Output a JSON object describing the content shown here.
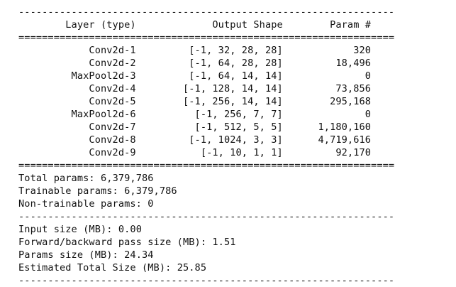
{
  "header": {
    "col_layer": "Layer (type)",
    "col_shape": "Output Shape",
    "col_params": "Param #"
  },
  "layers": [
    {
      "name": "Conv2d-1",
      "shape": "[-1, 32, 28, 28]",
      "params": "320"
    },
    {
      "name": "Conv2d-2",
      "shape": "[-1, 64, 28, 28]",
      "params": "18,496"
    },
    {
      "name": "MaxPool2d-3",
      "shape": "[-1, 64, 14, 14]",
      "params": "0"
    },
    {
      "name": "Conv2d-4",
      "shape": "[-1, 128, 14, 14]",
      "params": "73,856"
    },
    {
      "name": "Conv2d-5",
      "shape": "[-1, 256, 14, 14]",
      "params": "295,168"
    },
    {
      "name": "MaxPool2d-6",
      "shape": "[-1, 256, 7, 7]",
      "params": "0"
    },
    {
      "name": "Conv2d-7",
      "shape": "[-1, 512, 5, 5]",
      "params": "1,180,160"
    },
    {
      "name": "Conv2d-8",
      "shape": "[-1, 1024, 3, 3]",
      "params": "4,719,616"
    },
    {
      "name": "Conv2d-9",
      "shape": "[-1, 10, 1, 1]",
      "params": "92,170"
    }
  ],
  "param_totals": [
    {
      "label": "Total params:",
      "value": "6,379,786"
    },
    {
      "label": "Trainable params:",
      "value": "6,379,786"
    },
    {
      "label": "Non-trainable params:",
      "value": "0"
    }
  ],
  "size_totals": [
    {
      "label": "Input size (MB):",
      "value": "0.00"
    },
    {
      "label": "Forward/backward pass size (MB):",
      "value": "1.51"
    },
    {
      "label": "Params size (MB):",
      "value": "24.34"
    },
    {
      "label": "Estimated Total Size (MB):",
      "value": "25.85"
    }
  ],
  "colors": {
    "text": "#111111",
    "background": "#ffffff"
  }
}
